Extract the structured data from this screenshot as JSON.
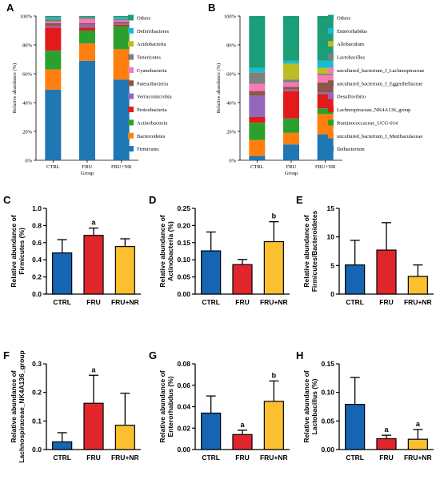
{
  "colors": {
    "blue": "#1565b3",
    "red": "#e0262c",
    "yellow": "#fbbf2f",
    "text": "#000000"
  },
  "chart_data": [
    {
      "id": "A",
      "panel_label": "A",
      "type": "bar",
      "stacked": true,
      "ylabel": "Relative abundance (%)",
      "xlabel": "Group",
      "yticks": [
        "0%",
        "20%",
        "40%",
        "60%",
        "80%",
        "100%"
      ],
      "ylim": [
        0,
        100
      ],
      "categories": [
        "CTRL",
        "FRU",
        "FRU+NR"
      ],
      "series": [
        {
          "name": "Firmicutes",
          "color": "#1f77b4",
          "values": [
            49,
            69,
            56
          ]
        },
        {
          "name": "Bacteroidetes",
          "color": "#ff7f0e",
          "values": [
            14,
            12,
            21
          ]
        },
        {
          "name": "Actinobacteria",
          "color": "#2ca02c",
          "values": [
            13,
            9,
            16
          ]
        },
        {
          "name": "Proteobacteria",
          "color": "#e31a1c",
          "values": [
            16,
            2,
            1
          ]
        },
        {
          "name": "Verrucomicrobia",
          "color": "#9467bd",
          "values": [
            1,
            2,
            1
          ]
        },
        {
          "name": "Patescibacteria",
          "color": "#8c564b",
          "values": [
            2,
            1,
            1
          ]
        },
        {
          "name": "Cyanobacteria",
          "color": "#f57ab6",
          "values": [
            1,
            3,
            1
          ]
        },
        {
          "name": "Tenericutes",
          "color": "#7f7f7f",
          "values": [
            2,
            1,
            1
          ]
        },
        {
          "name": "Acidobacteria",
          "color": "#bcbd22",
          "values": [
            0,
            0,
            0
          ]
        },
        {
          "name": "Deferribacteres",
          "color": "#17becf",
          "values": [
            1,
            0,
            1
          ]
        },
        {
          "name": "Others",
          "color": "#1b9e77",
          "values": [
            1,
            1,
            1
          ]
        }
      ]
    },
    {
      "id": "B",
      "panel_label": "B",
      "type": "bar",
      "stacked": true,
      "ylabel": "Relative abundance (%)",
      "xlabel": "Group",
      "yticks": [
        "0%",
        "20%",
        "40%",
        "60%",
        "80%",
        "100%"
      ],
      "ylim": [
        0,
        100
      ],
      "categories": [
        "CTRL",
        "FRU",
        "FRU+NR"
      ],
      "series": [
        {
          "name": "Ileibacterium",
          "color": "#1f77b4",
          "values": [
            3,
            11,
            18
          ]
        },
        {
          "name": "uncultured_bacterium_f_Muribaculaceae",
          "color": "#ff7f0e",
          "values": [
            11,
            8,
            14
          ]
        },
        {
          "name": "Ruminococcaceae_UCG-014",
          "color": "#2ca02c",
          "values": [
            12,
            10,
            4
          ]
        },
        {
          "name": "Lachnospiraceae_NK4A136_group",
          "color": "#e31a1c",
          "values": [
            4,
            19,
            10
          ]
        },
        {
          "name": "Desulfovibrio",
          "color": "#9467bd",
          "values": [
            15,
            1,
            1
          ]
        },
        {
          "name": "uncultured_bacterium_f_Eggerthellaceae",
          "color": "#8c564b",
          "values": [
            3,
            2,
            7
          ]
        },
        {
          "name": "uncultured_bacterium_f_Lachnospiraceae",
          "color": "#f57ab6",
          "values": [
            5,
            3,
            5
          ]
        },
        {
          "name": "Lactobacillus",
          "color": "#7f7f7f",
          "values": [
            8,
            2,
            1
          ]
        },
        {
          "name": "Allobaculum",
          "color": "#bcbd22",
          "values": [
            0,
            11,
            4
          ]
        },
        {
          "name": "Enterorhabdus",
          "color": "#17becf",
          "values": [
            3,
            2,
            5
          ]
        },
        {
          "name": "Others",
          "color": "#1b9e77",
          "values": [
            36,
            31,
            31
          ]
        }
      ]
    },
    {
      "id": "C",
      "panel_label": "C",
      "type": "bar",
      "ylabel": [
        "Relative abundance of",
        "Firmicutes (%)"
      ],
      "categories": [
        "CTRL",
        "FRU",
        "FRU+NR"
      ],
      "values": [
        0.48,
        0.685,
        0.555
      ],
      "errors": [
        0.155,
        0.085,
        0.09
      ],
      "ylim": [
        0,
        1.0
      ],
      "yticks": [
        0,
        0.2,
        0.4,
        0.6,
        0.8,
        1.0
      ],
      "ytick_labels": [
        "0.0",
        "0.2",
        "0.4",
        "0.6",
        "0.8",
        "1.0"
      ],
      "annotations": [
        "",
        "a",
        ""
      ]
    },
    {
      "id": "D",
      "panel_label": "D",
      "type": "bar",
      "ylabel": [
        "Relative abundance of",
        "Actinobacteria (%)"
      ],
      "categories": [
        "CTRL",
        "FRU",
        "FRU+NR"
      ],
      "values": [
        0.126,
        0.086,
        0.153
      ],
      "errors": [
        0.055,
        0.015,
        0.058
      ],
      "ylim": [
        0,
        0.25
      ],
      "yticks": [
        0,
        0.05,
        0.1,
        0.15,
        0.2,
        0.25
      ],
      "ytick_labels": [
        "0.00",
        "0.05",
        "0.10",
        "0.15",
        "0.20",
        "0.25"
      ],
      "annotations": [
        "",
        "",
        "b"
      ]
    },
    {
      "id": "E",
      "panel_label": "E",
      "type": "bar",
      "ylabel": [
        "Relative abundance of",
        "Firmicutes/Bacteroidetes"
      ],
      "categories": [
        "CTRL",
        "FRU",
        "FRU+NR"
      ],
      "values": [
        5.1,
        7.7,
        3.1
      ],
      "errors": [
        4.3,
        4.8,
        2.0
      ],
      "ylim": [
        0,
        15
      ],
      "yticks": [
        0,
        5,
        10,
        15
      ],
      "ytick_labels": [
        "0",
        "5",
        "10",
        "15"
      ],
      "annotations": [
        "",
        "",
        ""
      ]
    },
    {
      "id": "F",
      "panel_label": "F",
      "type": "bar",
      "ylabel": [
        "Relative abundance of",
        "Lachnospiraceae_NK4A136_group"
      ],
      "categories": [
        "CTRL",
        "FRU",
        "FRU+NR"
      ],
      "values": [
        0.027,
        0.162,
        0.085
      ],
      "errors": [
        0.032,
        0.098,
        0.112
      ],
      "ylim": [
        0,
        0.3
      ],
      "yticks": [
        0,
        0.1,
        0.2,
        0.3
      ],
      "ytick_labels": [
        "0.0",
        "0.1",
        "0.2",
        "0.3"
      ],
      "annotations": [
        "",
        "a",
        ""
      ]
    },
    {
      "id": "G",
      "panel_label": "G",
      "type": "bar",
      "ylabel": [
        "Relative abundance of",
        "Enterorhabdus (%)"
      ],
      "categories": [
        "CTRL",
        "FRU",
        "FRU+NR"
      ],
      "values": [
        0.034,
        0.014,
        0.045
      ],
      "errors": [
        0.016,
        0.004,
        0.019
      ],
      "ylim": [
        0,
        0.08
      ],
      "yticks": [
        0,
        0.02,
        0.04,
        0.06,
        0.08
      ],
      "ytick_labels": [
        "0.00",
        "0.02",
        "0.04",
        "0.06",
        "0.08"
      ],
      "annotations": [
        "",
        "a",
        "b"
      ]
    },
    {
      "id": "H",
      "panel_label": "H",
      "type": "bar",
      "ylabel": [
        "Relative abundance of",
        "Lactobacillus (%)"
      ],
      "categories": [
        "CTRL",
        "FRU",
        "FRU+NR"
      ],
      "values": [
        0.079,
        0.019,
        0.018
      ],
      "errors": [
        0.047,
        0.006,
        0.017
      ],
      "ylim": [
        0,
        0.15
      ],
      "yticks": [
        0,
        0.05,
        0.1,
        0.15
      ],
      "ytick_labels": [
        "0.00",
        "0.05",
        "0.10",
        "0.15"
      ],
      "annotations": [
        "",
        "a",
        "a"
      ]
    }
  ]
}
